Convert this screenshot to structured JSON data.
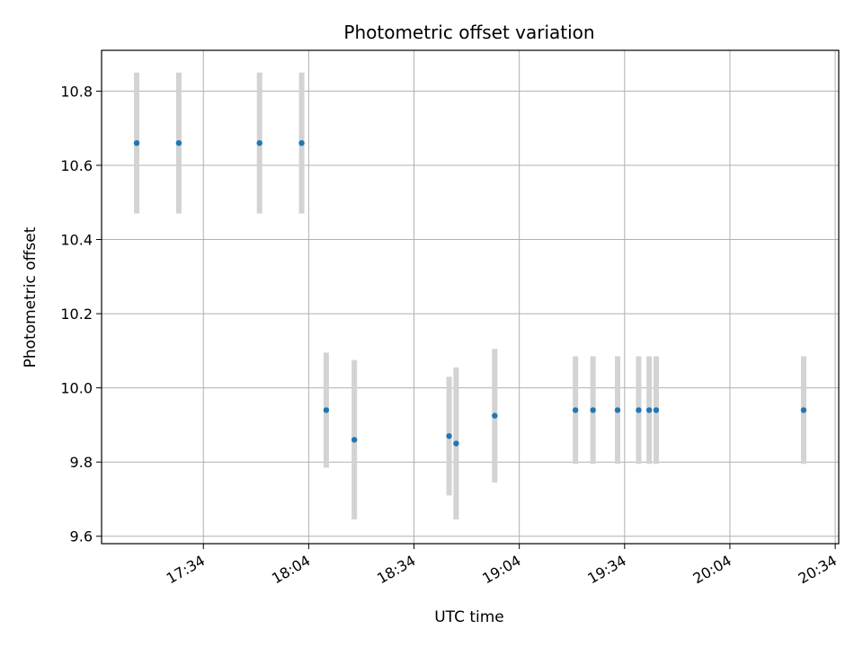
{
  "chart_data": {
    "type": "scatter",
    "title": "Photometric offset variation",
    "xlabel": "UTC time",
    "ylabel": "Photometric offset",
    "grid": true,
    "legend": "none",
    "xlim": [
      "17:05",
      "20:35"
    ],
    "ylim": [
      9.58,
      10.91
    ],
    "x_ticks": [
      "17:34",
      "18:04",
      "18:34",
      "19:04",
      "19:34",
      "20:04",
      "20:34"
    ],
    "y_ticks": [
      9.6,
      9.8,
      10.0,
      10.2,
      10.4,
      10.6,
      10.8
    ],
    "series": [
      {
        "marker_color": "#1f77b4",
        "errorbar_color": "#d3d3d3",
        "points": [
          {
            "x": "17:15",
            "y": 10.66,
            "err": 0.19
          },
          {
            "x": "17:27",
            "y": 10.66,
            "err": 0.19
          },
          {
            "x": "17:50",
            "y": 10.66,
            "err": 0.19
          },
          {
            "x": "18:02",
            "y": 10.66,
            "err": 0.19
          },
          {
            "x": "18:09",
            "y": 9.94,
            "err": 0.155
          },
          {
            "x": "18:17",
            "y": 9.86,
            "err": 0.215
          },
          {
            "x": "18:44",
            "y": 9.87,
            "err": 0.16
          },
          {
            "x": "18:46",
            "y": 9.85,
            "err": 0.205
          },
          {
            "x": "18:57",
            "y": 9.925,
            "err": 0.18
          },
          {
            "x": "19:20",
            "y": 9.94,
            "err": 0.145
          },
          {
            "x": "19:25",
            "y": 9.94,
            "err": 0.145
          },
          {
            "x": "19:32",
            "y": 9.94,
            "err": 0.145
          },
          {
            "x": "19:38",
            "y": 9.94,
            "err": 0.145
          },
          {
            "x": "19:41",
            "y": 9.94,
            "err": 0.145
          },
          {
            "x": "19:43",
            "y": 9.94,
            "err": 0.145
          },
          {
            "x": "20:25",
            "y": 9.94,
            "err": 0.145
          }
        ]
      }
    ]
  }
}
